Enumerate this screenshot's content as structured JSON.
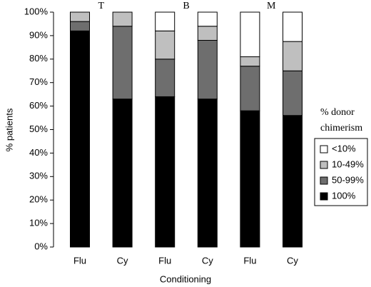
{
  "chart_data": {
    "type": "stacked-bar",
    "group_labels": [
      "T",
      "B",
      "M"
    ],
    "categories": [
      "Flu",
      "Cy",
      "Flu",
      "Cy",
      "Flu",
      "Cy"
    ],
    "x_label": "Conditioning",
    "y_label": "% patients",
    "legend_title": [
      "% donor",
      "chimerism"
    ],
    "series": [
      {
        "name": "100%",
        "color": "#000000",
        "values": [
          92,
          63,
          64,
          63,
          58,
          56
        ]
      },
      {
        "name": "50-99%",
        "color": "#6e6e6e",
        "values": [
          4,
          31,
          16,
          25,
          19,
          19
        ]
      },
      {
        "name": "10-49%",
        "color": "#bfbfbf",
        "values": [
          4,
          6,
          12,
          6,
          4,
          12.5
        ]
      },
      {
        "name": "<10%",
        "color": "#ffffff",
        "values": [
          0,
          0,
          8,
          6,
          19,
          12.5
        ]
      }
    ],
    "ylim": [
      0,
      100
    ],
    "yticks": [
      {
        "value": 0,
        "label": "0%"
      },
      {
        "value": 10,
        "label": "10%"
      },
      {
        "value": 20,
        "label": "20%"
      },
      {
        "value": 30,
        "label": "30%"
      },
      {
        "value": 40,
        "label": "40%"
      },
      {
        "value": 50,
        "label": "50%"
      },
      {
        "value": 60,
        "label": "60%"
      },
      {
        "value": 70,
        "label": "70%"
      },
      {
        "value": 80,
        "label": "80%"
      },
      {
        "value": 90,
        "label": "90%"
      },
      {
        "value": 100,
        "label": "100%"
      }
    ],
    "grid": false
  }
}
